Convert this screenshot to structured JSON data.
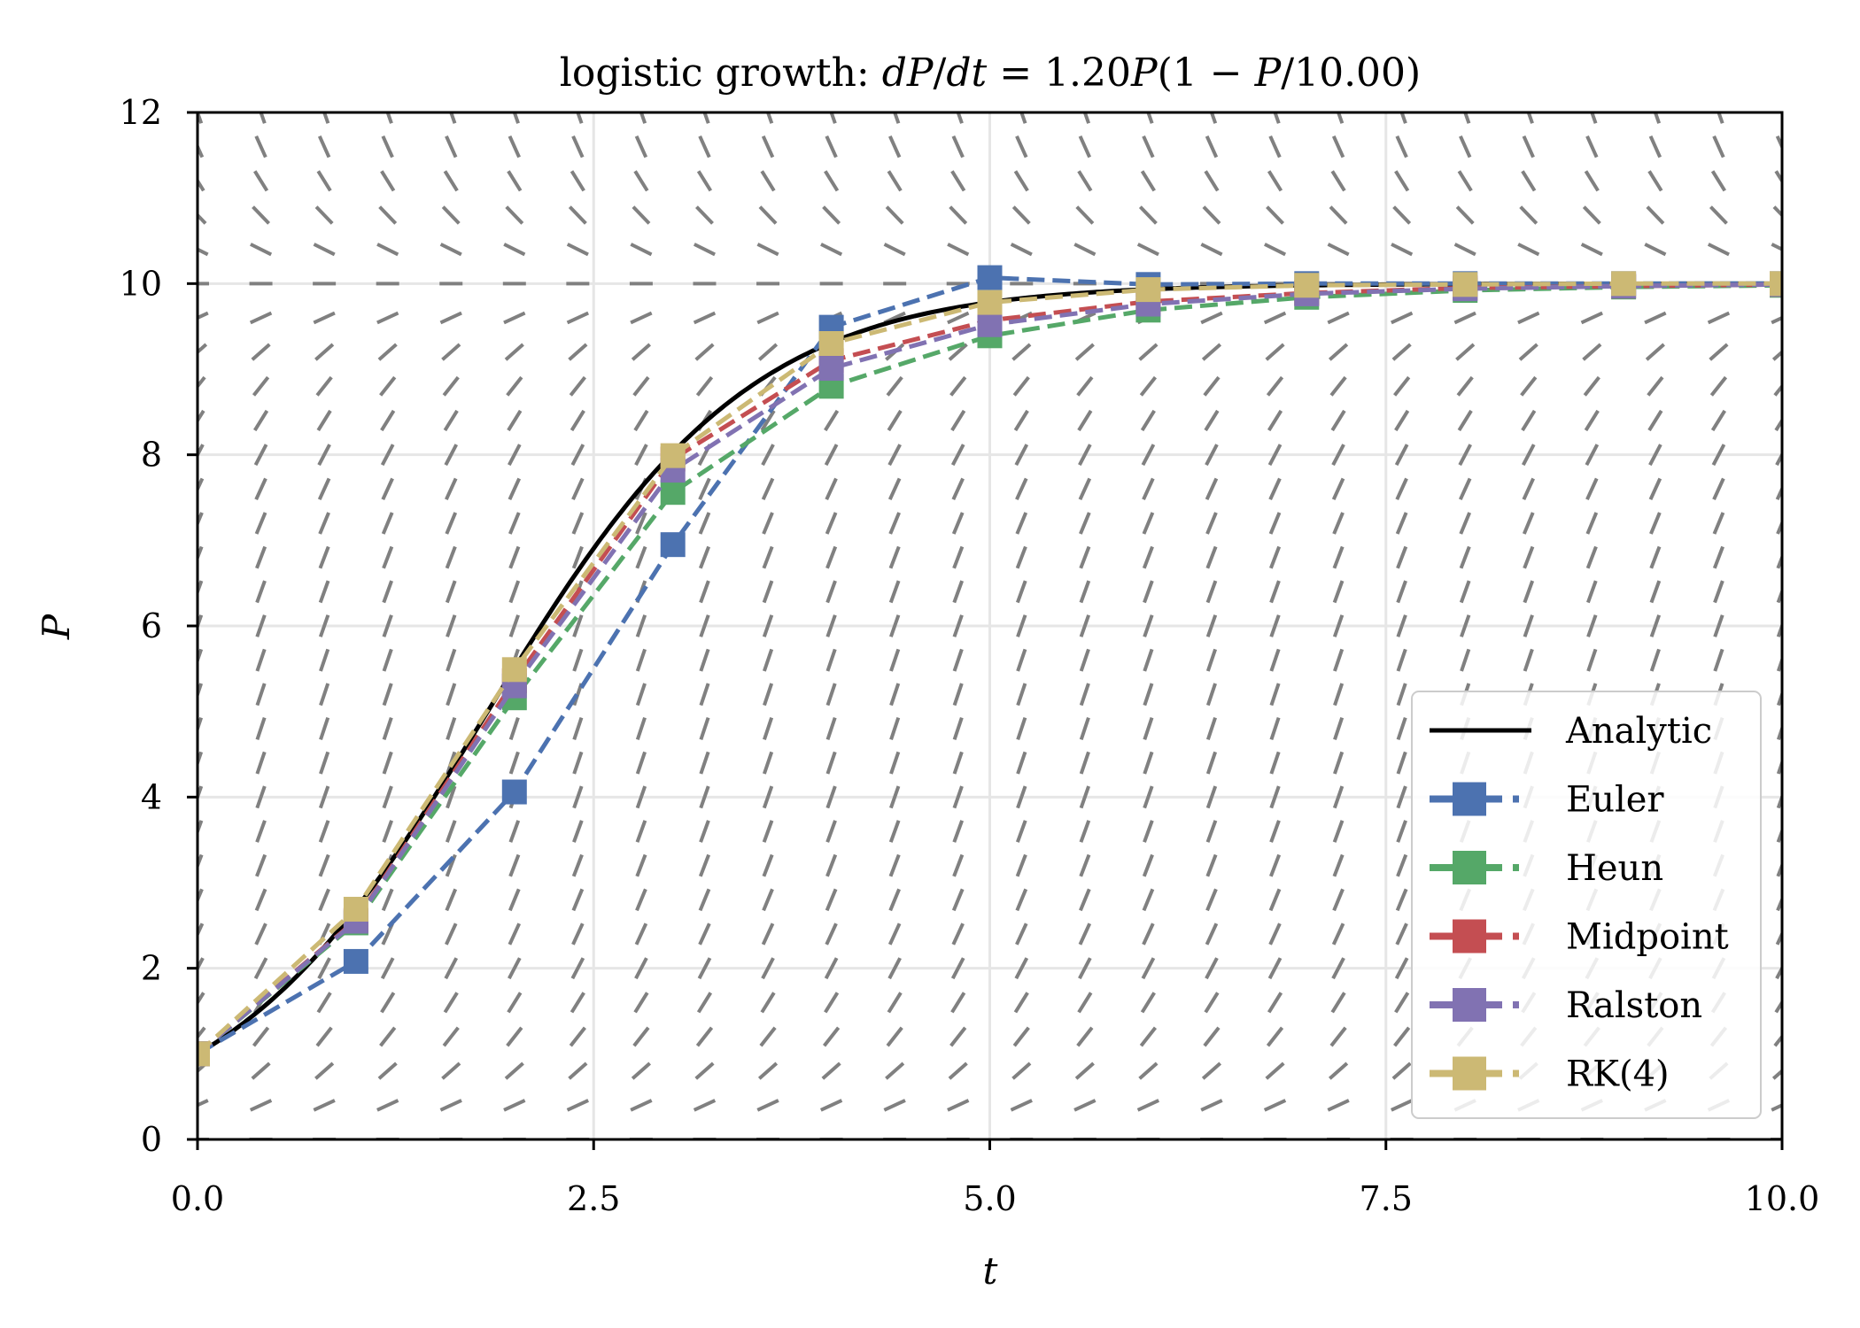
{
  "chart_data": {
    "type": "line",
    "title": "logistic growth: dP/dt = 1.20P(1 − P/10.00)",
    "xlabel": "t",
    "ylabel": "P",
    "xlim": [
      0,
      10
    ],
    "ylim": [
      0,
      12
    ],
    "xticks": [
      "0.0",
      "2.5",
      "5.0",
      "7.5",
      "10.0"
    ],
    "yticks": [
      "0",
      "2",
      "4",
      "6",
      "8",
      "10",
      "12"
    ],
    "grid": true,
    "legend_position": "lower-right",
    "model": {
      "r": 1.2,
      "K": 10,
      "P0": 1
    },
    "slope_field": {
      "t_step": 0.4,
      "P_step": 0.4,
      "color": "#808080"
    },
    "analytic": {
      "name": "Analytic",
      "color": "#000000"
    },
    "x": [
      0,
      1,
      2,
      3,
      4,
      5,
      6,
      7,
      8,
      9,
      10
    ],
    "series": [
      {
        "name": "Euler",
        "color": "#4C72B0",
        "values": [
          1.0,
          2.08,
          4.06,
          6.95,
          9.49,
          10.07,
          9.99,
          10.0,
          10.0,
          10.0,
          10.0
        ]
      },
      {
        "name": "Heun",
        "color": "#55A868",
        "values": [
          1.0,
          2.53,
          5.16,
          7.56,
          8.8,
          9.39,
          9.69,
          9.84,
          9.92,
          9.96,
          9.98
        ]
      },
      {
        "name": "Midpoint",
        "color": "#C44E52",
        "values": [
          1.0,
          2.56,
          5.36,
          7.95,
          9.1,
          9.57,
          9.79,
          9.89,
          9.95,
          9.97,
          9.99
        ]
      },
      {
        "name": "Ralston",
        "color": "#8172B2",
        "values": [
          1.0,
          2.55,
          5.3,
          7.82,
          9.01,
          9.52,
          9.76,
          9.88,
          9.94,
          9.97,
          9.99
        ]
      },
      {
        "name": "RK(4)",
        "color": "#CCB974",
        "values": [
          1.0,
          2.69,
          5.49,
          7.99,
          9.3,
          9.78,
          9.93,
          9.98,
          9.99,
          10.0,
          10.0
        ]
      }
    ]
  }
}
